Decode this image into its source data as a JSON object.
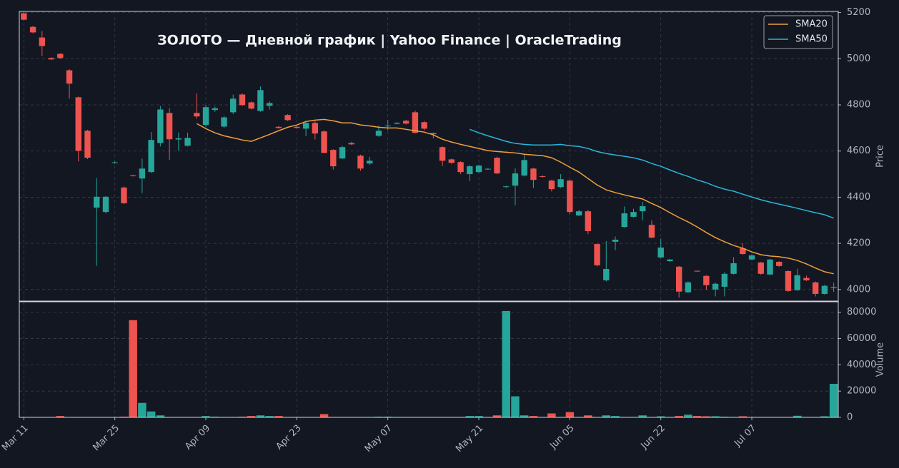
{
  "chart_data": [
    {
      "type": "candlestick",
      "title": "ЗОЛОТО  —  Дневной график  |  Yahoo Finance  |  OracleTrading",
      "y_label": "Price",
      "categories": [
        "Mar 11",
        null,
        null,
        null,
        null,
        null,
        null,
        null,
        null,
        null,
        "Mar 25",
        null,
        null,
        null,
        null,
        null,
        null,
        null,
        null,
        null,
        "Apr 09",
        null,
        null,
        null,
        null,
        null,
        null,
        null,
        null,
        null,
        "Apr 23",
        null,
        null,
        null,
        null,
        null,
        null,
        null,
        null,
        null,
        "May 07",
        null,
        null,
        null,
        null,
        null,
        null,
        null,
        null,
        null,
        "May 21",
        null,
        null,
        null,
        null,
        null,
        null,
        null,
        null,
        null,
        "Jun 05",
        null,
        null,
        null,
        null,
        null,
        null,
        null,
        null,
        null,
        "Jun 22",
        null,
        null,
        null,
        null,
        null,
        null,
        null,
        null,
        null,
        "Jul 07",
        null,
        null,
        null,
        null,
        null,
        null,
        null,
        null,
        null
      ],
      "open": [
        5197,
        5138,
        5092,
        5003,
        5021,
        4950,
        4833,
        4688,
        4355,
        4336,
        4548,
        4442,
        4495,
        4481,
        4509,
        4635,
        4765,
        4650,
        4623,
        4765,
        4713,
        4778,
        4706,
        4768,
        4845,
        4811,
        4774,
        4796,
        4705,
        4756,
        4705,
        4697,
        4722,
        4685,
        4605,
        4568,
        4635,
        4580,
        4546,
        4666,
        4708,
        4718,
        4731,
        4768,
        4725,
        4678,
        4617,
        4564,
        4552,
        4500,
        4509,
        4521,
        4571,
        4444,
        4450,
        4494,
        4524,
        4491,
        4472,
        4444,
        4472,
        4321,
        4339,
        4197,
        4040,
        4207,
        4271,
        4315,
        4339,
        4280,
        4139,
        4123,
        4099,
        3988,
        4081,
        4059,
        4000,
        4012,
        4068,
        4179,
        4130,
        4117,
        4065,
        4120,
        4080,
        3997,
        4050,
        4031,
        3981,
        4006
      ],
      "high": [
        5202,
        5142,
        5120,
        5006,
        5024,
        4955,
        4836,
        4692,
        4483,
        4404,
        4555,
        4446,
        4497,
        4567,
        4682,
        4795,
        4786,
        4680,
        4680,
        4850,
        4800,
        4792,
        4752,
        4845,
        4850,
        4815,
        4880,
        4815,
        4708,
        4760,
        4708,
        4730,
        4730,
        4690,
        4608,
        4622,
        4640,
        4584,
        4575,
        4710,
        4735,
        4726,
        4735,
        4775,
        4730,
        4680,
        4620,
        4568,
        4556,
        4540,
        4541,
        4526,
        4575,
        4450,
        4525,
        4585,
        4528,
        4495,
        4476,
        4500,
        4476,
        4345,
        4345,
        4200,
        4210,
        4230,
        4360,
        4350,
        4380,
        4300,
        4220,
        4133,
        4102,
        4035,
        4083,
        4062,
        4030,
        4075,
        4140,
        4200,
        4152,
        4120,
        4133,
        4123,
        4083,
        4090,
        4060,
        4035,
        4020,
        4030
      ],
      "low": [
        5165,
        5110,
        5012,
        4994,
        5000,
        4827,
        4555,
        4565,
        4102,
        4330,
        4545,
        4370,
        4490,
        4417,
        4505,
        4620,
        4562,
        4600,
        4620,
        4740,
        4705,
        4770,
        4700,
        4760,
        4795,
        4780,
        4770,
        4780,
        4697,
        4730,
        4697,
        4665,
        4650,
        4590,
        4520,
        4565,
        4626,
        4515,
        4540,
        4662,
        4690,
        4715,
        4715,
        4676,
        4690,
        4655,
        4535,
        4545,
        4500,
        4470,
        4505,
        4519,
        4500,
        4440,
        4365,
        4490,
        4440,
        4485,
        4425,
        4440,
        4325,
        4318,
        4240,
        4100,
        4035,
        4170,
        4268,
        4312,
        4300,
        4222,
        4136,
        4120,
        3965,
        3985,
        4077,
        3999,
        3970,
        3970,
        4065,
        4150,
        4127,
        4064,
        4062,
        4098,
        3990,
        3994,
        4037,
        3970,
        3978,
        3990
      ],
      "close": [
        5169,
        5114,
        5055,
        4997,
        5003,
        4892,
        4601,
        4571,
        4402,
        4402,
        4551,
        4374,
        4492,
        4524,
        4648,
        4780,
        4651,
        4655,
        4657,
        4750,
        4790,
        4785,
        4746,
        4827,
        4799,
        4784,
        4864,
        4808,
        4700,
        4734,
        4700,
        4722,
        4676,
        4592,
        4534,
        4617,
        4629,
        4524,
        4558,
        4688,
        4710,
        4722,
        4719,
        4679,
        4697,
        4673,
        4558,
        4549,
        4509,
        4534,
        4537,
        4523,
        4503,
        4447,
        4503,
        4561,
        4475,
        4488,
        4435,
        4478,
        4336,
        4339,
        4253,
        4105,
        4089,
        4216,
        4330,
        4336,
        4361,
        4225,
        4182,
        4130,
        3991,
        4031,
        4080,
        4019,
        4025,
        4068,
        4114,
        4154,
        4148,
        4068,
        4130,
        4102,
        3994,
        4062,
        4040,
        3981,
        4016,
        4010
      ],
      "up_color": "#26a69a",
      "down_color": "#ef5350",
      "series": [
        {
          "name": "SMA20",
          "color": "#f0a03c",
          "values": [
            null,
            null,
            null,
            null,
            null,
            null,
            null,
            null,
            null,
            null,
            null,
            null,
            null,
            null,
            null,
            null,
            null,
            null,
            null,
            4719,
            4697,
            4679,
            4666,
            4657,
            4648,
            4642,
            4657,
            4672,
            4688,
            4703,
            4713,
            4728,
            4734,
            4737,
            4731,
            4722,
            4722,
            4713,
            4709,
            4703,
            4700,
            4700,
            4694,
            4688,
            4682,
            4670,
            4651,
            4639,
            4629,
            4620,
            4611,
            4602,
            4598,
            4595,
            4592,
            4586,
            4583,
            4580,
            4571,
            4552,
            4530,
            4509,
            4481,
            4453,
            4432,
            4420,
            4410,
            4401,
            4392,
            4373,
            4355,
            4333,
            4312,
            4293,
            4271,
            4247,
            4225,
            4207,
            4191,
            4179,
            4163,
            4151,
            4145,
            4142,
            4136,
            4126,
            4111,
            4093,
            4077,
            4068
          ]
        },
        {
          "name": "SMA50",
          "color": "#29b6d9",
          "values": [
            null,
            null,
            null,
            null,
            null,
            null,
            null,
            null,
            null,
            null,
            null,
            null,
            null,
            null,
            null,
            null,
            null,
            null,
            null,
            null,
            null,
            null,
            null,
            null,
            null,
            null,
            null,
            null,
            null,
            null,
            null,
            null,
            null,
            null,
            null,
            null,
            null,
            null,
            null,
            null,
            null,
            null,
            null,
            null,
            null,
            null,
            null,
            null,
            null,
            4694,
            4679,
            4666,
            4654,
            4642,
            4633,
            4629,
            4626,
            4626,
            4626,
            4629,
            4623,
            4620,
            4611,
            4598,
            4589,
            4583,
            4577,
            4571,
            4561,
            4546,
            4534,
            4518,
            4503,
            4490,
            4475,
            4463,
            4447,
            4435,
            4426,
            4413,
            4401,
            4389,
            4379,
            4370,
            4361,
            4352,
            4342,
            4333,
            4324,
            4309
          ]
        }
      ],
      "ylim": [
        3950,
        5205
      ],
      "yticks": [
        4000,
        4200,
        4400,
        4600,
        4800,
        5000,
        5200
      ],
      "grid": true,
      "legend": "upper right"
    },
    {
      "type": "bar",
      "y_label": "Volume",
      "values": [
        300,
        200,
        200,
        300,
        1000,
        200,
        200,
        200,
        200,
        200,
        200,
        500,
        74000,
        11000,
        4500,
        1500,
        200,
        300,
        300,
        300,
        1000,
        500,
        300,
        300,
        500,
        1000,
        1500,
        1000,
        1000,
        300,
        300,
        300,
        300,
        2500,
        300,
        300,
        300,
        300,
        300,
        500,
        500,
        300,
        300,
        300,
        300,
        300,
        300,
        300,
        300,
        1000,
        1000,
        300,
        1500,
        81000,
        16000,
        1500,
        1000,
        300,
        3000,
        300,
        4000,
        300,
        1500,
        300,
        1500,
        1000,
        300,
        300,
        1500,
        300,
        800,
        300,
        1000,
        2000,
        1000,
        800,
        800,
        500,
        300,
        800,
        300,
        300,
        300,
        300,
        300,
        1200,
        300,
        300,
        800,
        25500
      ],
      "ylim": [
        0,
        88000
      ],
      "yticks": [
        0,
        20000,
        40000,
        60000,
        80000
      ],
      "grid": true
    }
  ]
}
